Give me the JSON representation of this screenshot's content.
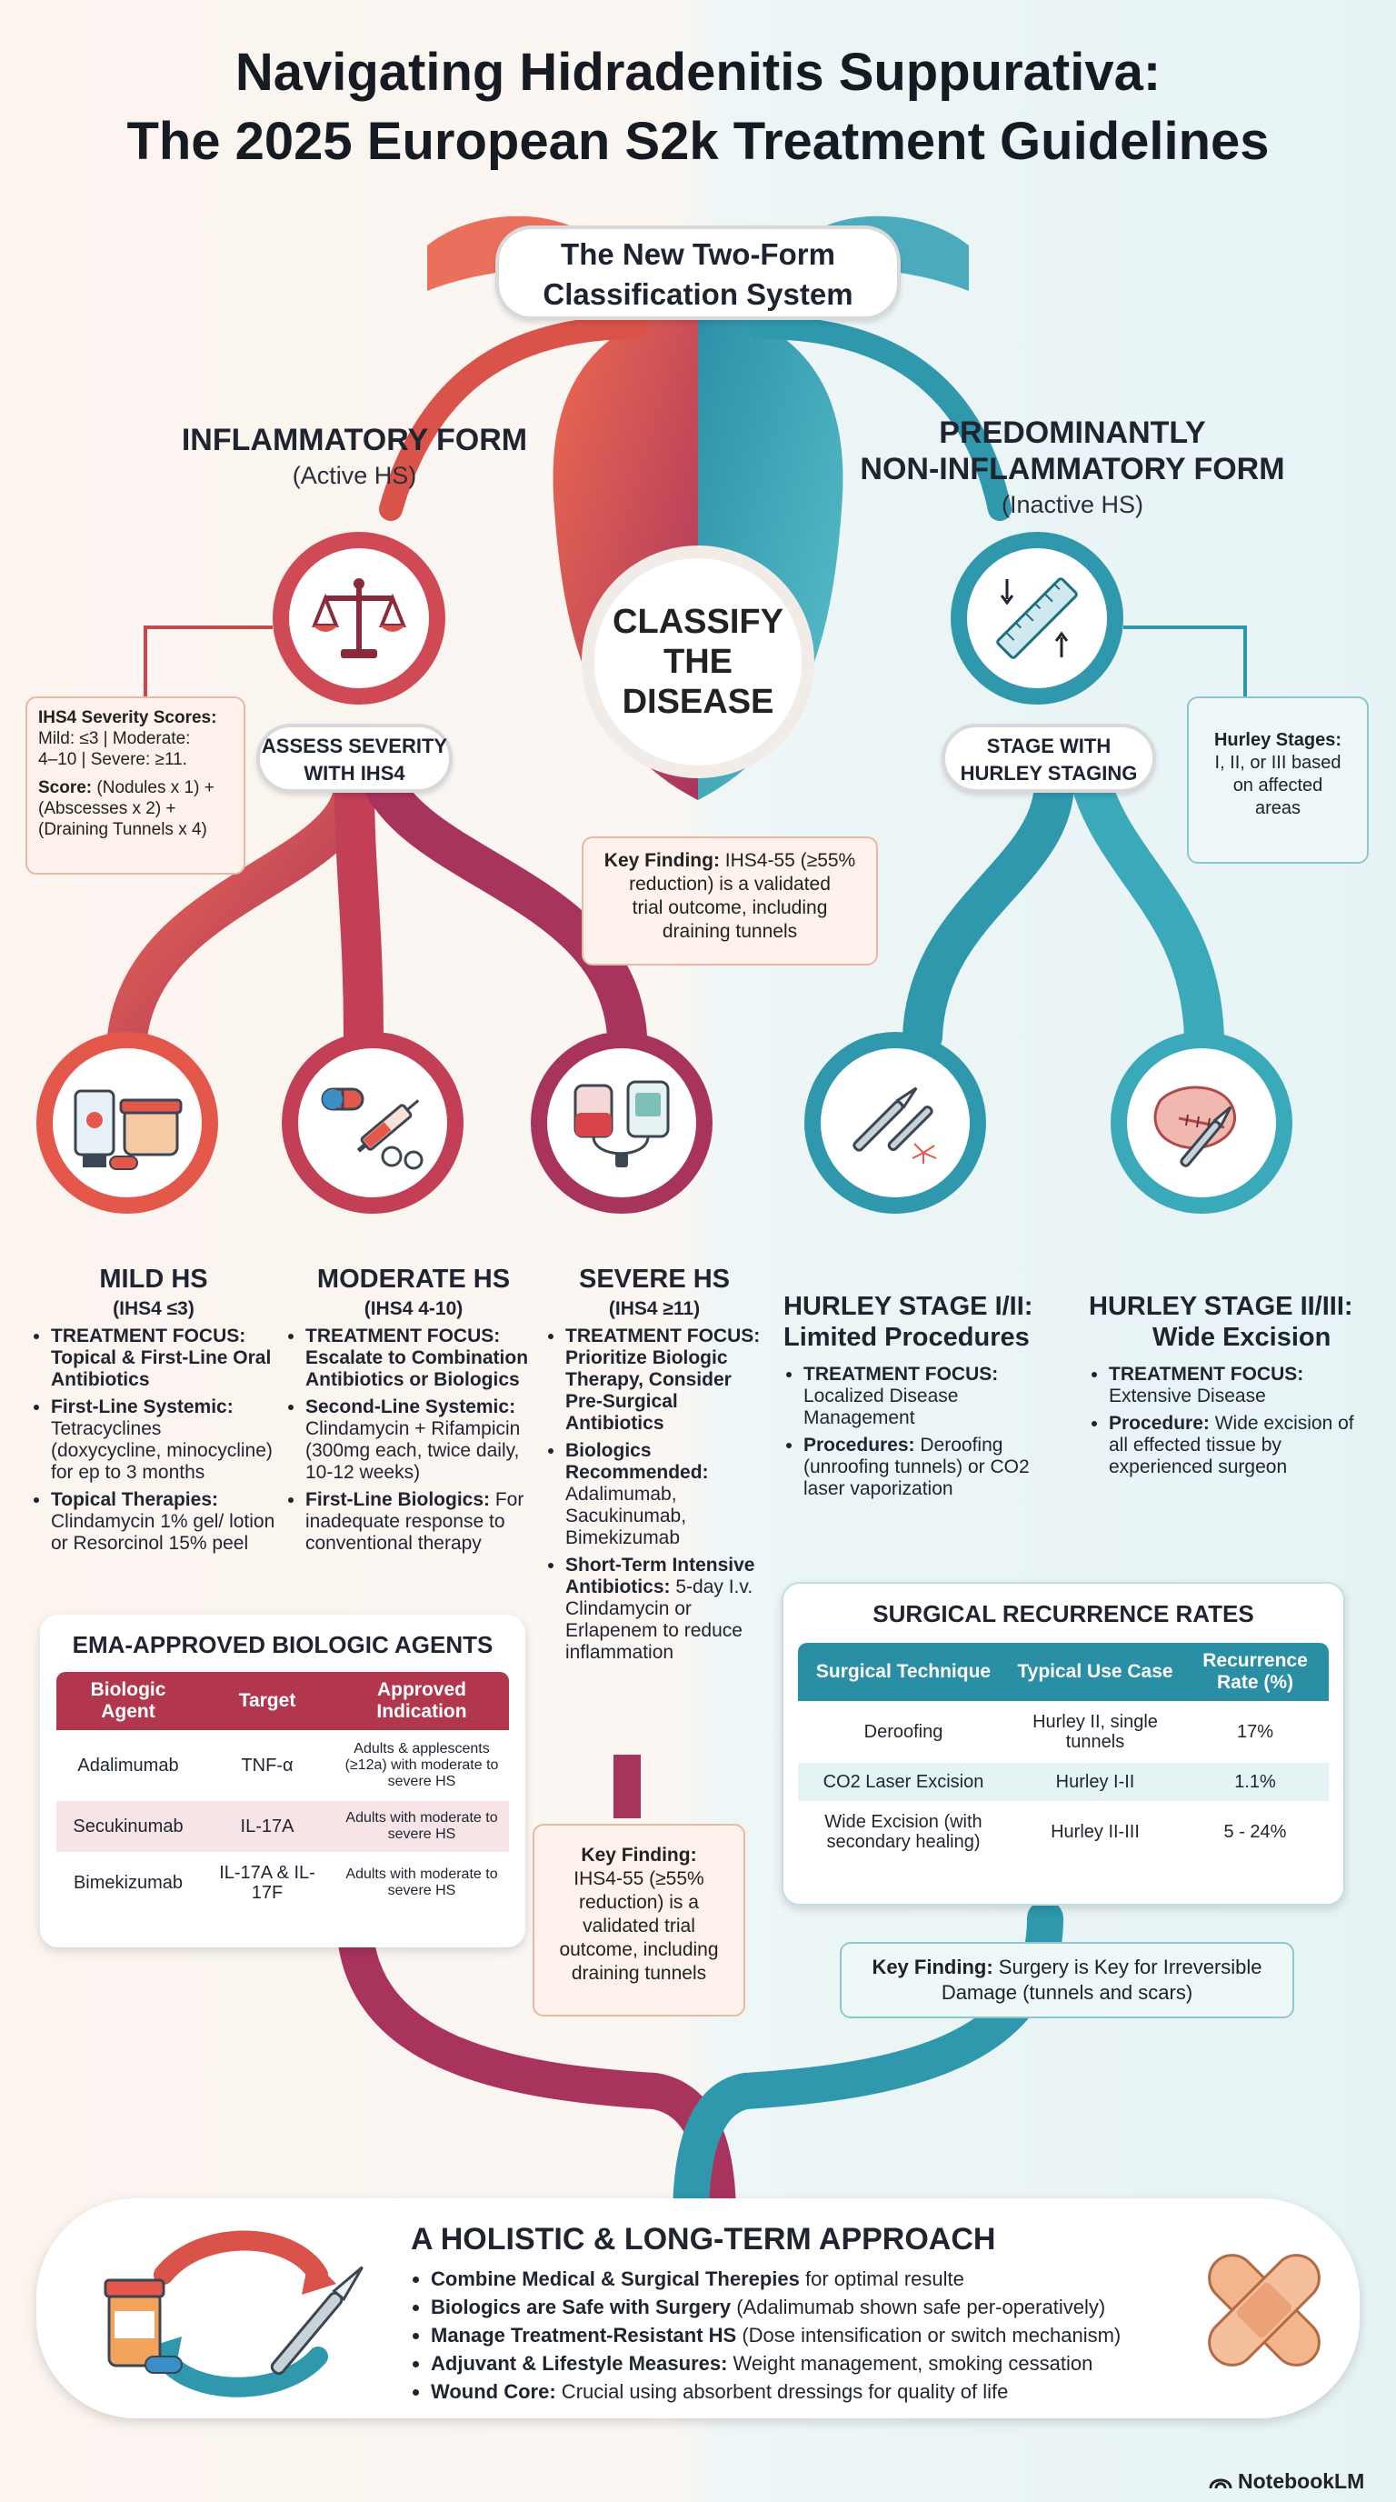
{
  "title": {
    "line1": "Navigating Hidradenitis Suppurativa:",
    "line2": "The 2025 European S2k Treatment Guidelines"
  },
  "classification": {
    "heading_line1": "The New Two-Form",
    "heading_line2": "Classification System",
    "center_line1": "CLASSIFY",
    "center_line2": "THE",
    "center_line3": "DISEASE"
  },
  "inflammatory": {
    "title": "INFLAMMATORY FORM",
    "subtitle": "(Active HS)",
    "assess_line1": "ASSESS SEVERITY",
    "assess_line2": "WITH IHS4",
    "ihs4_note": {
      "title": "IHS4 Severity Scores:",
      "line1": "Mild: ≤3 | Moderate:",
      "line2": "4–10 | Severe: ≥11.",
      "score_label": "Score:",
      "score_line1": "(Nodules x 1) +",
      "score_line2": "(Abscesses x 2) +",
      "score_line3": "(Draining Tunnels x 4)"
    }
  },
  "non_inflammatory": {
    "title_line1": "PREDOMINANTLY",
    "title_line2": "NON-INFLAMMATORY FORM",
    "subtitle": "(Inactive HS)",
    "stage_line1": "STAGE WITH",
    "stage_line2": "HURLEY STAGING",
    "hurley_note": {
      "title": "Hurley Stages:",
      "line1": "I, II, or III based",
      "line2": "on affected",
      "line3": "areas"
    }
  },
  "key_finding_top": {
    "label": "Key Finding:",
    "line1": "IHS4-55 (≥55%",
    "line2": "reduction) is a validated",
    "line3": "trial outcome, including",
    "line4": "draining tunnels"
  },
  "mild": {
    "title": "MILD HS",
    "sub": "(IHS4 ≤3)",
    "b1_label": "TREATMENT FOCUS:",
    "b1_text": "Topical & First-Line Oral Antibiotics",
    "b2_label": "First-Line Systemic:",
    "b2_text": "Tetracyclines (doxycycline, minocycline) for ep to 3 months",
    "b3_label": "Topical Therapies:",
    "b3_text": "Clindamycin 1% gel/ lotion or Resorcinol 15% peel"
  },
  "moderate": {
    "title": "MODERATE HS",
    "sub": "(IHS4 4-10)",
    "b1_label": "TREATMENT FOCUS:",
    "b1_text": "Escalate to Combination Antibiotics or Biologics",
    "b2_label": "Second-Line Systemic:",
    "b2_text": "Clindamycin + Rifampicin (300mg each, twice daily, 10-12 weeks)",
    "b3_label": "First-Line Biologics:",
    "b3_text": "For inadequate response to conventional therapy"
  },
  "severe": {
    "title": "SEVERE HS",
    "sub": "(IHS4 ≥11)",
    "b1_label": "TREATMENT FOCUS:",
    "b1_text": "Prioritize Biologic Therapy, Consider Pre-Surgical Antibiotics",
    "b2_label": "Biologics Recommended:",
    "b2_text": "Adalimumab, Sacukinumab, Bimekizumab",
    "b3_label": "Short-Term Intensive Antibiotics:",
    "b3_text": "5-day I.v. Clindamycin or Erlapenem to reduce inflammation"
  },
  "key_finding_severe": {
    "label": "Key Finding:",
    "text": "IHS4-55 (≥55% reduction) is a validated trial outcome, including draining tunnels"
  },
  "hurley12": {
    "title_line1": "HURLEY STAGE I/II:",
    "title_line2": "Limited Procedures",
    "b1_label": "TREATMENT FOCUS:",
    "b1_text": "Localized Disease Management",
    "b2_label": "Procedures:",
    "b2_text": "Deroofing (unroofing tunnels) or CO2 laser vaporization"
  },
  "hurley23": {
    "title_line1": "HURLEY STAGE II/III:",
    "title_line2": "Wide Excision",
    "b1_label": "TREATMENT FOCUS:",
    "b1_text": "Extensive Disease",
    "b2_label": "Procedure:",
    "b2_text": "Wide excision of all effected tissue by experienced surgeon"
  },
  "biologics_table": {
    "title": "EMA-APPROVED BIOLOGIC AGENTS",
    "headers": [
      "Biologic Agent",
      "Target",
      "Approved Indication"
    ],
    "rows": [
      [
        "Adalimumab",
        "TNF-α",
        "Adults & applescents (≥12a) with moderate to severe HS"
      ],
      [
        "Secukinumab",
        "IL-17A",
        "Adults with moderate to severe HS"
      ],
      [
        "Bimekizumab",
        "IL-17A & IL-17F",
        "Adults with moderate to severe HS"
      ]
    ]
  },
  "recurrence_table": {
    "title": "SURGICAL RECURRENCE RATES",
    "headers": [
      "Surgical Technique",
      "Typical Use Case",
      "Recurrence Rate (%)"
    ],
    "rows": [
      [
        "Deroofing",
        "Hurley II, single tunnels",
        "17%"
      ],
      [
        "CO2 Laser Excision",
        "Hurley I-II",
        "1.1%"
      ],
      [
        "Wide Excision (with secondary healing)",
        "Hurley II-III",
        "5 - 24%"
      ]
    ]
  },
  "key_finding_surgery": {
    "label": "Key Finding:",
    "text": "Surgery is Key for Irreversible Damage (tunnels and scars)"
  },
  "holistic": {
    "title": "A HOLISTIC & LONG-TERM APPROACH",
    "items": [
      {
        "label": "Combine Medical & Surgical Therepies",
        "text": " for optimal resulte"
      },
      {
        "label": "Biologics are Safe with Surgery",
        "text": " (Adalimumab shown safe per-operatively)"
      },
      {
        "label": "Manage Treatment-Resistant HS",
        "text": " (Dose intensification or switch mechanism)"
      },
      {
        "label": "Adjuvant & Lifestyle Measures:",
        "text": " Weight management, smoking cessation"
      },
      {
        "label": "Wound Core:",
        "text": " Crucial using absorbent dressings for quality of life"
      }
    ]
  },
  "brand": "NotebookLM",
  "colors": {
    "inflammatory": "#d9534a",
    "inflammatory_dark": "#a8345e",
    "non_inflammatory": "#2f98ad",
    "table_head_red": "#b2364e",
    "table_head_teal": "#2a8ea4"
  }
}
